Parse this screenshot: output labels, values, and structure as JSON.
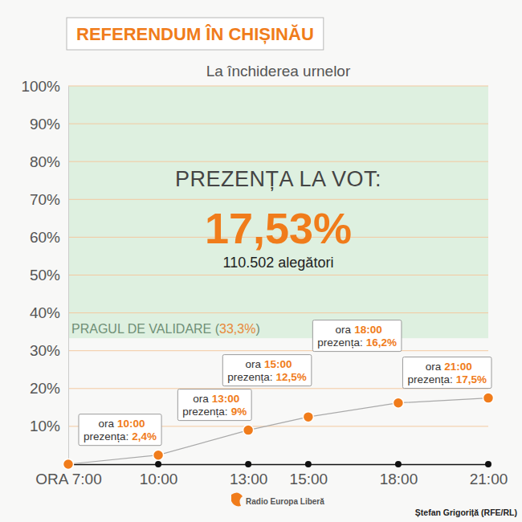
{
  "chart_data": {
    "type": "line",
    "title": "REFERENDUM ÎN CHIȘINĂU",
    "subtitle": "La închiderea urnelor",
    "headline": {
      "label": "PREZENȚA LA VOT:",
      "turnout": "17,53%",
      "voters": "110.502 alegători"
    },
    "x": [
      7,
      10,
      13,
      15,
      18,
      21
    ],
    "values": [
      0,
      2.4,
      9,
      12.5,
      16.2,
      17.5
    ],
    "value_labels": [
      null,
      "2,4%",
      "9%",
      "12,5%",
      "16,2%",
      "17,5%"
    ],
    "data_labels": true,
    "color": "#f07c1b",
    "marker": "circle",
    "line_style": "solid",
    "annotations": {
      "time_prefix": "ora",
      "value_prefix": "prezența:",
      "times": [
        null,
        "10:00",
        "13:00",
        "15:00",
        "18:00",
        "21:00"
      ]
    },
    "threshold": {
      "value": 33.3,
      "label": "PRAGUL DE VALIDARE (",
      "value_label": "33,3%",
      "label_end": ")"
    },
    "xlim": [
      7,
      21
    ],
    "xticks": [
      {
        "value": 7,
        "label": "ORA 7:00"
      },
      {
        "value": 10,
        "label": "10:00"
      },
      {
        "value": 13,
        "label": "13:00"
      },
      {
        "value": 15,
        "label": "15:00"
      },
      {
        "value": 18,
        "label": "18:00"
      },
      {
        "value": 21,
        "label": "21:00"
      }
    ],
    "ylim": [
      0,
      100
    ],
    "yticks": [
      {
        "value": 10,
        "label": "10%"
      },
      {
        "value": 20,
        "label": "20%"
      },
      {
        "value": 30,
        "label": "30%"
      },
      {
        "value": 40,
        "label": "40%"
      },
      {
        "value": 50,
        "label": "50%"
      },
      {
        "value": 60,
        "label": "60%"
      },
      {
        "value": 70,
        "label": "70%"
      },
      {
        "value": 80,
        "label": "80%"
      },
      {
        "value": 90,
        "label": "90%"
      },
      {
        "value": 100,
        "label": "100%"
      }
    ],
    "grid": true,
    "source": "Radio Europa Liberă",
    "credit": "Ștefan Grigoriță (RFE/RL)"
  }
}
